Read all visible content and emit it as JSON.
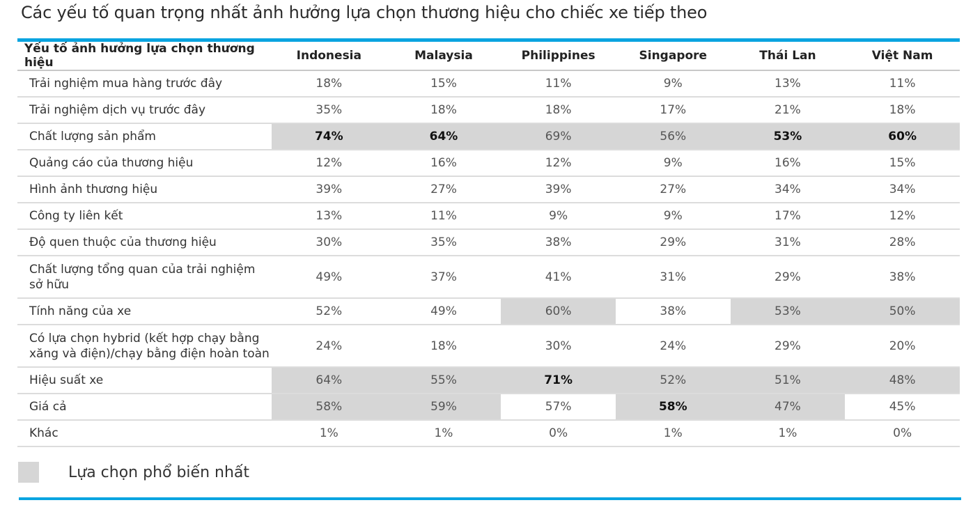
{
  "title": "Các yếu tố quan trọng nhất ảnh hưởng lựa chọn thương hiệu cho chiếc xe tiếp theo",
  "colors": {
    "accent": "#0aa4e0",
    "highlight": "#d6d6d6"
  },
  "legend": {
    "label": "Lựa chọn phổ biến nhất"
  },
  "chart_data": {
    "type": "table",
    "title": "Các yếu tố quan trọng nhất ảnh hưởng lựa chọn thương hiệu cho chiếc xe tiếp theo",
    "header": "Yếu tố ảnh hưởng lựa chọn thương hiệu",
    "columns": [
      "Indonesia",
      "Malaysia",
      "Philippines",
      "Singapore",
      "Thái Lan",
      "Việt Nam"
    ],
    "rows": [
      {
        "label": "Trải nghiệm mua hàng trước đây",
        "values": [
          "18%",
          "15%",
          "11%",
          "9%",
          "13%",
          "11%"
        ],
        "highlight": [
          false,
          false,
          false,
          false,
          false,
          false
        ],
        "bold": [
          false,
          false,
          false,
          false,
          false,
          false
        ]
      },
      {
        "label": "Trải nghiệm dịch vụ trước đây",
        "values": [
          "35%",
          "18%",
          "18%",
          "17%",
          "21%",
          "18%"
        ],
        "highlight": [
          false,
          false,
          false,
          false,
          false,
          false
        ],
        "bold": [
          false,
          false,
          false,
          false,
          false,
          false
        ]
      },
      {
        "label": "Chất lượng sản phẩm",
        "values": [
          "74%",
          "64%",
          "69%",
          "56%",
          "53%",
          "60%"
        ],
        "highlight": [
          true,
          true,
          true,
          true,
          true,
          true
        ],
        "bold": [
          true,
          true,
          false,
          false,
          true,
          true
        ]
      },
      {
        "label": "Quảng cáo của thương hiệu",
        "values": [
          "12%",
          "16%",
          "12%",
          "9%",
          "16%",
          "15%"
        ],
        "highlight": [
          false,
          false,
          false,
          false,
          false,
          false
        ],
        "bold": [
          false,
          false,
          false,
          false,
          false,
          false
        ]
      },
      {
        "label": "Hình ảnh thương hiệu",
        "values": [
          "39%",
          "27%",
          "39%",
          "27%",
          "34%",
          "34%"
        ],
        "highlight": [
          false,
          false,
          false,
          false,
          false,
          false
        ],
        "bold": [
          false,
          false,
          false,
          false,
          false,
          false
        ]
      },
      {
        "label": "Công ty liên kết",
        "values": [
          "13%",
          "11%",
          "9%",
          "9%",
          "17%",
          "12%"
        ],
        "highlight": [
          false,
          false,
          false,
          false,
          false,
          false
        ],
        "bold": [
          false,
          false,
          false,
          false,
          false,
          false
        ]
      },
      {
        "label": "Độ quen thuộc của thương hiệu",
        "values": [
          "30%",
          "35%",
          "38%",
          "29%",
          "31%",
          "28%"
        ],
        "highlight": [
          false,
          false,
          false,
          false,
          false,
          false
        ],
        "bold": [
          false,
          false,
          false,
          false,
          false,
          false
        ]
      },
      {
        "label": "Chất lượng tổng quan của trải nghiệm sở hữu",
        "values": [
          "49%",
          "37%",
          "41%",
          "31%",
          "29%",
          "38%"
        ],
        "highlight": [
          false,
          false,
          false,
          false,
          false,
          false
        ],
        "bold": [
          false,
          false,
          false,
          false,
          false,
          false
        ],
        "tall": true
      },
      {
        "label": "Tính năng của xe",
        "values": [
          "52%",
          "49%",
          "60%",
          "38%",
          "53%",
          "50%"
        ],
        "highlight": [
          false,
          false,
          true,
          false,
          true,
          true
        ],
        "bold": [
          false,
          false,
          false,
          false,
          false,
          false
        ]
      },
      {
        "label": "Có lựa chọn hybrid (kết hợp chạy bằng xăng và điện)/chạy bằng điện hoàn toàn",
        "values": [
          "24%",
          "18%",
          "30%",
          "24%",
          "29%",
          "20%"
        ],
        "highlight": [
          false,
          false,
          false,
          false,
          false,
          false
        ],
        "bold": [
          false,
          false,
          false,
          false,
          false,
          false
        ],
        "tall": true
      },
      {
        "label": "Hiệu suất xe",
        "values": [
          "64%",
          "55%",
          "71%",
          "52%",
          "51%",
          "48%"
        ],
        "highlight": [
          true,
          true,
          true,
          true,
          true,
          true
        ],
        "bold": [
          false,
          false,
          true,
          false,
          false,
          false
        ]
      },
      {
        "label": "Giá cả",
        "values": [
          "58%",
          "59%",
          "57%",
          "58%",
          "47%",
          "45%"
        ],
        "highlight": [
          true,
          true,
          false,
          true,
          true,
          false
        ],
        "bold": [
          false,
          false,
          false,
          true,
          false,
          false
        ]
      },
      {
        "label": "Khác",
        "values": [
          "1%",
          "1%",
          "0%",
          "1%",
          "1%",
          "0%"
        ],
        "highlight": [
          false,
          false,
          false,
          false,
          false,
          false
        ],
        "bold": [
          false,
          false,
          false,
          false,
          false,
          false
        ]
      }
    ]
  }
}
